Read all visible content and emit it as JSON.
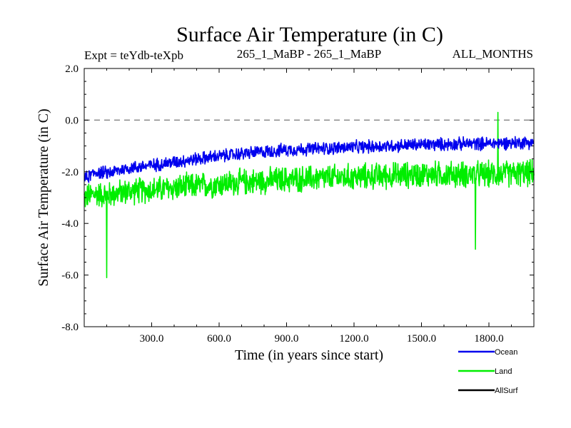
{
  "chart_data": {
    "type": "line",
    "title": "Surface Air Temperature (in C)",
    "subtitle_left": "Expt = teYdb-teXpb",
    "subtitle_center": "265_1_MaBP - 265_1_MaBP",
    "subtitle_right": "ALL_MONTHS",
    "xlabel": "Time (in years since start)",
    "ylabel": "Surface Air Temperature (in C)",
    "xlim": [
      0,
      2000
    ],
    "ylim": [
      -8.0,
      2.0
    ],
    "x_ticks": [
      300,
      600,
      900,
      1200,
      1500,
      1800
    ],
    "x_tick_labels": [
      "300.0",
      "600.0",
      "900.0",
      "1200.0",
      "1500.0",
      "1800.0"
    ],
    "y_ticks": [
      -8,
      -6,
      -4,
      -2,
      0,
      2
    ],
    "y_tick_labels": [
      "-8.0",
      "-6.0",
      "-4.0",
      "-2.0",
      "0.0",
      "2.0"
    ],
    "reference_line": {
      "y": 0.0,
      "style": "dashed",
      "color": "#888888"
    },
    "series": [
      {
        "name": "Land",
        "color": "#00ee00",
        "trend_x": [
          0,
          50,
          100,
          200,
          300,
          500,
          700,
          900,
          1200,
          1500,
          1800,
          2000
        ],
        "trend_y": [
          -3.0,
          -2.85,
          -2.9,
          -2.75,
          -2.7,
          -2.55,
          -2.4,
          -2.3,
          -2.2,
          -2.1,
          -2.1,
          -2.05
        ],
        "noise_amplitude": 0.6,
        "extremes": [
          {
            "x": 100,
            "y": -6.1
          },
          {
            "x": 1740,
            "y": -5.0
          },
          {
            "x": 1840,
            "y": 0.3
          }
        ]
      },
      {
        "name": "Ocean",
        "color": "#0000ee",
        "trend_x": [
          0,
          50,
          100,
          200,
          300,
          500,
          700,
          900,
          1200,
          1500,
          1800,
          2000
        ],
        "trend_y": [
          -2.3,
          -2.0,
          -2.05,
          -1.85,
          -1.75,
          -1.5,
          -1.3,
          -1.15,
          -1.05,
          -0.95,
          -0.9,
          -0.85
        ],
        "noise_amplitude": 0.3
      },
      {
        "name": "AllSurf",
        "color": "#000000",
        "trend_x": [],
        "trend_y": []
      }
    ],
    "legend": {
      "position": "bottom-right",
      "entries": [
        "Ocean",
        "Land",
        "AllSurf"
      ]
    }
  }
}
